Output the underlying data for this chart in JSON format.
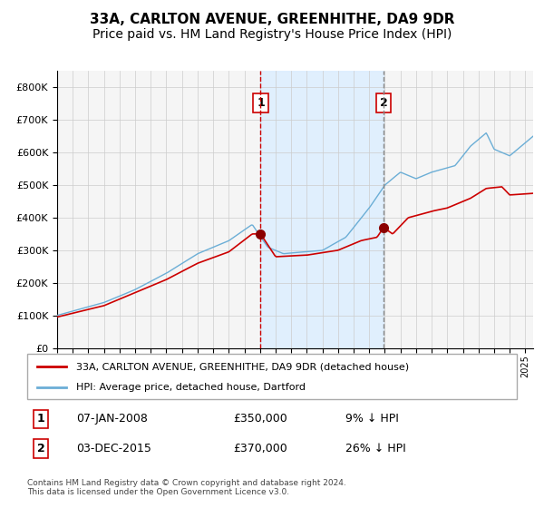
{
  "title": "33A, CARLTON AVENUE, GREENHITHE, DA9 9DR",
  "subtitle": "Price paid vs. HM Land Registry's House Price Index (HPI)",
  "title_fontsize": 11,
  "subtitle_fontsize": 10,
  "legend_line1": "33A, CARLTON AVENUE, GREENHITHE, DA9 9DR (detached house)",
  "legend_line2": "HPI: Average price, detached house, Dartford",
  "sale1_date": "07-JAN-2008",
  "sale1_price": 350000,
  "sale1_pct": "9%",
  "sale2_date": "03-DEC-2015",
  "sale2_price": 370000,
  "sale2_pct": "26%",
  "footer": "Contains HM Land Registry data © Crown copyright and database right 2024.\nThis data is licensed under the Open Government Licence v3.0.",
  "hpi_color": "#6baed6",
  "property_color": "#cc0000",
  "sale_marker_color": "#8b0000",
  "dashed_line_color": "#cc0000",
  "shade_color": "#ddeeff",
  "background_color": "#ffffff",
  "grid_color": "#cccccc",
  "ylim": [
    0,
    850000
  ],
  "yticks": [
    0,
    100000,
    200000,
    300000,
    400000,
    500000,
    600000,
    700000,
    800000
  ],
  "xstart_year": 1995,
  "xend_year": 2025,
  "sale1_year": 2008.04,
  "sale2_year": 2015.92
}
